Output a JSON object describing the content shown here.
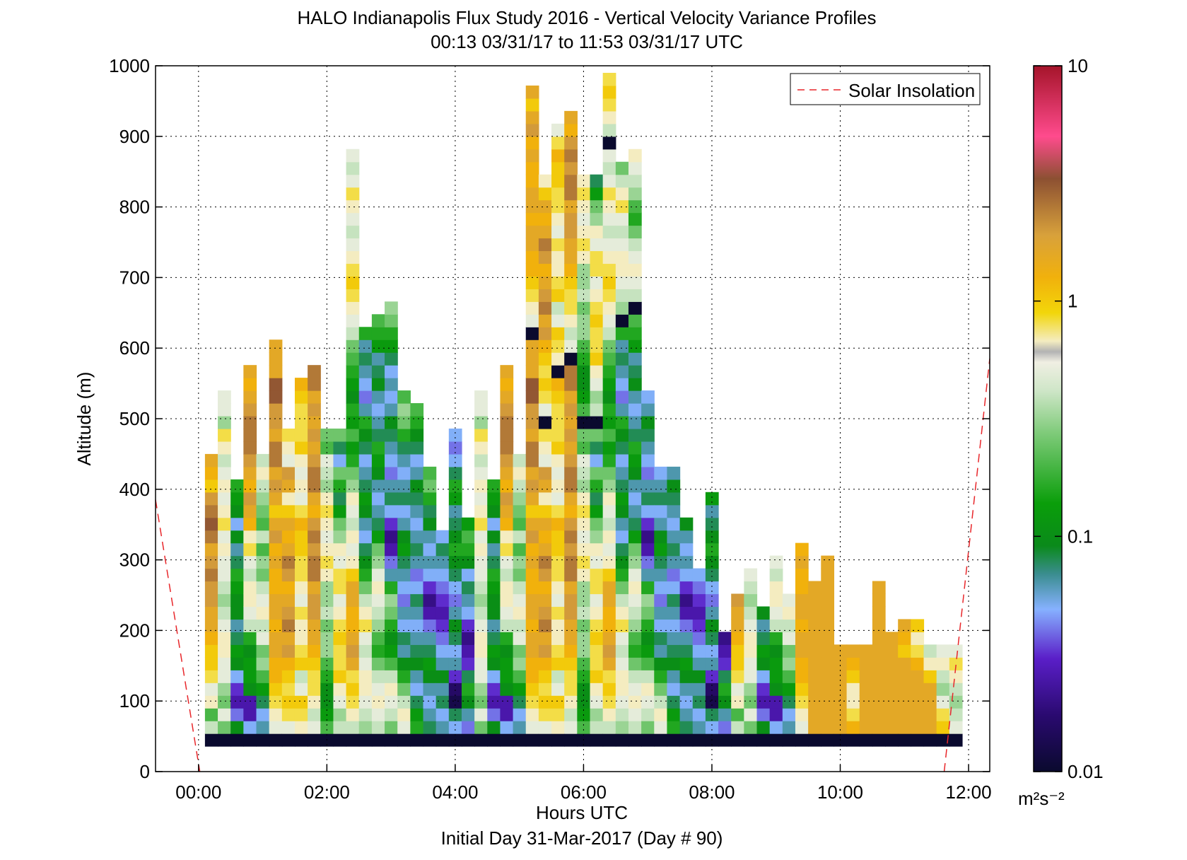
{
  "chart_data": {
    "type": "heatmap",
    "title": "HALO Indianapolis Flux Study 2016 - Vertical Velocity Variance Profiles",
    "subtitle": "00:13 03/31/17 to 11:53 03/31/17  UTC",
    "xlabel": "Hours UTC",
    "xlabel2": "Initial Day 31-Mar-2017 (Day # 90)",
    "ylabel": "Altitude (m)",
    "x_unit": "hours UTC",
    "xlim": [
      -0.67,
      12.33
    ],
    "ylim": [
      0,
      1000
    ],
    "x_ticks": [
      0,
      2,
      4,
      6,
      8,
      10,
      12
    ],
    "x_tick_labels": [
      "00:00",
      "02:00",
      "04:00",
      "06:00",
      "08:00",
      "10:00",
      "12:00"
    ],
    "y_ticks": [
      0,
      100,
      200,
      300,
      400,
      500,
      600,
      700,
      800,
      900,
      1000
    ],
    "y_tick_labels": [
      "0",
      "100",
      "200",
      "300",
      "400",
      "500",
      "600",
      "700",
      "800",
      "900",
      "1000"
    ],
    "grid": true,
    "legend": {
      "placement": "top-right",
      "entries": [
        {
          "label": "Solar Insolation",
          "style": "dashed",
          "color": "#e8262a"
        }
      ]
    },
    "colorbar": {
      "scale": "log",
      "range": [
        0.01,
        10
      ],
      "ticks": [
        0.01,
        0.1,
        1,
        10
      ],
      "tick_labels": [
        "0.01",
        "0.1",
        "1",
        "10"
      ],
      "unit": "m²s⁻²"
    },
    "cell_time_step_hours": 0.2,
    "cell_altitude_step_m": 18,
    "note_values": "log10 of variance (m²/s²); each column lists values from the lowest gate (36 m) upward; first column starts at x=0.2 h",
    "columns": [
      {
        "x": 0.2,
        "log_values": [
          -2,
          -0.4,
          -0.7,
          -0.2,
          -0.3,
          -0.1,
          0.0,
          0.0,
          0.1,
          0.2,
          0.2,
          0.3,
          0.3,
          0.4,
          0.3,
          0.2,
          0.4,
          0.5,
          0.4,
          0.3,
          0.0,
          0.1,
          0.2
        ]
      },
      {
        "x": 0.4,
        "log_values": [
          -2,
          -0.6,
          -0.3,
          -0.6,
          -0.5,
          -0.3,
          -0.3,
          -0.2,
          -0.2,
          -0.3,
          -0.4,
          -0.5,
          -0.4,
          -0.3,
          -0.3,
          -0.2,
          -0.3,
          -0.1,
          -0.2,
          -0.3,
          -0.2,
          -0.3,
          -0.4,
          -0.2,
          -0.1,
          -0.5,
          -0.3,
          -0.3
        ]
      },
      {
        "x": 0.6,
        "log_values": [
          -2,
          -1.0,
          -1.4,
          -1.6,
          -1.5,
          -1.3,
          -1.0,
          -0.9,
          -1.1,
          -1.2,
          -1.0,
          -1.0,
          -0.9,
          -0.8,
          -1.1,
          -1.2,
          -1.0,
          -1.3,
          -1.0,
          -0.9,
          -0.8
        ]
      },
      {
        "x": 0.8,
        "log_values": [
          -2,
          -1.3,
          -1.6,
          -1.6,
          -1.0,
          -0.9,
          -0.9,
          -1.0,
          -0.8,
          -0.4,
          -0.3,
          -0.2,
          -0.2,
          -0.4,
          -0.3,
          -0.1,
          -0.2,
          0.1,
          0.2,
          0.3,
          0.1,
          0.2,
          0.3,
          0.4,
          0.4,
          0.4,
          0.3,
          0.2,
          0.1,
          0.2
        ]
      },
      {
        "x": 1.0,
        "log_values": [
          -2,
          -1.2,
          -1.3,
          -1.1,
          -0.9,
          -0.7,
          -0.5,
          -0.6,
          -0.3,
          -0.4,
          -0.2,
          -0.3,
          -0.4,
          -0.6,
          -0.5,
          -0.7,
          -0.4,
          -0.7,
          -0.6,
          -0.5,
          -0.4,
          -0.2,
          -0.4
        ]
      },
      {
        "x": 1.2,
        "log_values": [
          -2,
          -0.3,
          -0.2,
          -0.1,
          0.0,
          0.1,
          0.1,
          0.2,
          0.2,
          0.1,
          0.2,
          0.2,
          0.1,
          0.1,
          0.2,
          0.1,
          0.3,
          0.2,
          0.0,
          0.2,
          0.3,
          0.2,
          0.4,
          0.4,
          0.2,
          0.3,
          0.3,
          0.5,
          0.5,
          0.2,
          0.2,
          0.2
        ]
      },
      {
        "x": 1.4,
        "log_values": [
          -2,
          -0.3,
          -0.1,
          0.0,
          -0.1,
          0.0,
          0.1,
          0.3,
          0.2,
          0.4,
          0.3,
          0.2,
          0.1,
          0.3,
          0.4,
          0.2,
          0.1,
          0.2,
          0.0,
          -0.2,
          0.2,
          0.3,
          -0.3,
          -0.2,
          -0.1
        ]
      },
      {
        "x": 1.6,
        "log_values": [
          -2,
          -0.2,
          -0.1,
          0.0,
          -0.3,
          -0.4,
          0.0,
          -0.1,
          -0.2,
          -0.2,
          -0.1,
          -0.3,
          -0.2,
          -0.1,
          -0.1,
          0.0,
          0.0,
          0.1,
          -0.1,
          -0.3,
          -0.2,
          -0.3,
          -0.2,
          0.0,
          -0.1,
          -0.1,
          -0.1,
          0.0,
          0.1
        ]
      },
      {
        "x": 1.8,
        "log_values": [
          -2,
          -0.3,
          -0.4,
          -0.2,
          -0.1,
          -0.1,
          0.0,
          0.1,
          0.2,
          0.2,
          0.3,
          0.3,
          0.2,
          0.4,
          0.4,
          0.3,
          0.4,
          0.3,
          0.1,
          0.2,
          0.4,
          0.4,
          0.3,
          0.2,
          0.3,
          0.2,
          0.3,
          0.2,
          0.4,
          0.4
        ]
      },
      {
        "x": 2.0,
        "log_values": [
          -2,
          -0.7,
          -0.9,
          -1.0,
          -1.0,
          -0.8,
          -0.7,
          -0.5,
          -0.5,
          -0.6,
          -0.4,
          -0.5,
          -0.5,
          -0.2,
          -0.1,
          -0.2,
          -0.3,
          -0.2,
          -0.1,
          -0.2,
          -0.5,
          -0.4,
          -0.3,
          -0.7,
          -0.6
        ]
      },
      {
        "x": 2.2,
        "log_values": [
          -2,
          -0.4,
          -0.5,
          -0.3,
          -0.2,
          0.0,
          -0.1,
          -0.1,
          0.0,
          -0.1,
          -0.2,
          -0.3,
          -0.1,
          -0.1,
          -0.3,
          -0.2,
          -0.5,
          -0.6,
          -0.9,
          -1.1,
          -0.8,
          -0.6,
          -1.3,
          -1.1,
          -0.6
        ]
      },
      {
        "x": 2.4,
        "log_values": [
          -2,
          -0.4,
          -0.2,
          -0.1,
          0.0,
          -0.1,
          0.2,
          0.3,
          0.2,
          0.1,
          0.1,
          0.2,
          0.2,
          0.0,
          -0.2,
          -0.3,
          -0.2,
          -0.4,
          -0.3,
          -0.2,
          -0.5,
          -0.6,
          -0.8,
          -0.9,
          -0.7,
          -0.9,
          -0.8,
          -1.0,
          -0.9,
          -0.8,
          -0.7,
          -0.6,
          -0.4,
          -0.3,
          -0.2,
          -0.1,
          0.0,
          -0.1,
          -0.2,
          -0.3,
          -0.4,
          -0.3,
          -0.2,
          -0.1,
          -0.3,
          -0.4,
          -0.3
        ]
      },
      {
        "x": 2.6,
        "log_values": [
          -2,
          -0.5,
          -0.4,
          -0.3,
          -0.2,
          -0.2,
          -0.3,
          -0.4,
          -0.3,
          -0.1,
          -0.2,
          -0.4,
          -0.6,
          -0.8,
          -1.0,
          -1.1,
          -1.3,
          -1.2,
          -1.0,
          -0.9,
          -1.1,
          -1.2,
          -1.3,
          -1.1,
          -1.0,
          -0.8,
          -1.2,
          -1.4,
          -1.3,
          -1.2,
          -1.1,
          -1.2,
          -0.8
        ]
      },
      {
        "x": 2.8,
        "log_values": [
          -2,
          -0.4,
          -0.3,
          -0.2,
          -0.3,
          -0.4,
          -0.6,
          -0.8,
          -0.7,
          -0.5,
          -0.4,
          -0.3,
          -0.2,
          -0.3,
          -0.5,
          -0.6,
          -0.9,
          -1.1,
          -1.2,
          -1.3,
          -1.2,
          -1.0,
          -0.9,
          -0.8,
          -1.1,
          -1.2,
          -1.3,
          -1.2,
          -1.0,
          -1.1,
          -1.2,
          -0.9,
          -0.8,
          -0.7
        ]
      },
      {
        "x": 3.0,
        "log_values": [
          -2,
          -0.6,
          -0.4,
          -0.3,
          -0.2,
          -0.4,
          -0.7,
          -0.9,
          -1.0,
          -0.8,
          -0.6,
          -0.5,
          -0.8,
          -1.2,
          -1.4,
          -1.6,
          -1.7,
          -1.5,
          -1.3,
          -1.1,
          -1.2,
          -1.4,
          -1.3,
          -1.2,
          -1.1,
          -1.0,
          -1.2,
          -1.3,
          -1.2,
          -1.3,
          -1.1,
          -0.9,
          -0.8,
          -0.6,
          -0.5
        ]
      },
      {
        "x": 3.2,
        "log_values": [
          -2,
          -0.3,
          -0.2,
          -0.4,
          -0.6,
          -0.8,
          -1.0,
          -1.2,
          -1.1,
          -1.3,
          -1.2,
          -1.4,
          -1.3,
          -1.2,
          -1.1,
          -0.9,
          -1.0,
          -1.2,
          -1.3,
          -1.1,
          -1.2,
          -1.3,
          -1.2,
          -1.1,
          -0.8,
          -0.6,
          -0.5,
          -0.7
        ]
      },
      {
        "x": 3.4,
        "log_values": [
          -2,
          -0.8,
          -0.9,
          -1.1,
          -1.3,
          -1.2,
          -1.0,
          -1.1,
          -1.2,
          -1.3,
          -1.2,
          -1.1,
          -1.3,
          -1.4,
          -1.2,
          -1.1,
          -1.2,
          -1.3,
          -1.2,
          -1.1,
          -1.0,
          -1.2,
          -1.3,
          -1.1,
          -1.0,
          -0.8,
          -0.7
        ]
      },
      {
        "x": 3.6,
        "log_values": [
          -2,
          -1.1,
          -1.2,
          -1.3,
          -1.2,
          -1.0,
          -0.9,
          -1.1,
          -1.2,
          -1.4,
          -1.6,
          -1.7,
          -1.5,
          -1.3,
          -1.2,
          -1.3,
          -1.2,
          -1.0,
          -1.1,
          -0.8,
          -0.6,
          -0.7
        ]
      },
      {
        "x": 3.8,
        "log_values": [
          -2,
          -1.2,
          -1.3,
          -1.1,
          -1.2,
          -1.0,
          -1.2,
          -1.3,
          -1.4,
          -1.5,
          -1.6,
          -1.5,
          -1.4,
          -1.3,
          -1.2,
          -1.1,
          -1.3
        ]
      },
      {
        "x": 4.0,
        "log_values": [
          -2,
          -1.3,
          -1.1,
          -1.9,
          -1.8,
          -1.5,
          -1.2,
          -1.3,
          -1.1,
          -1.0,
          -1.2,
          -1.4,
          -1.3,
          -1.1,
          -1.0,
          -0.8,
          -1.0,
          -1.1,
          -1.2,
          -0.9,
          -0.8,
          -1.1,
          -1.3,
          -1.4,
          -1.3
        ]
      },
      {
        "x": 4.2,
        "log_values": [
          -2,
          -1.4,
          -1.2,
          -1.0,
          -0.8,
          -1.1,
          -1.5,
          -1.6,
          -1.7,
          -1.5,
          -1.3,
          -1.2,
          -1.1,
          -1.3,
          -1.0,
          -0.8,
          -0.7,
          -0.9
        ]
      }
    ]
  }
}
